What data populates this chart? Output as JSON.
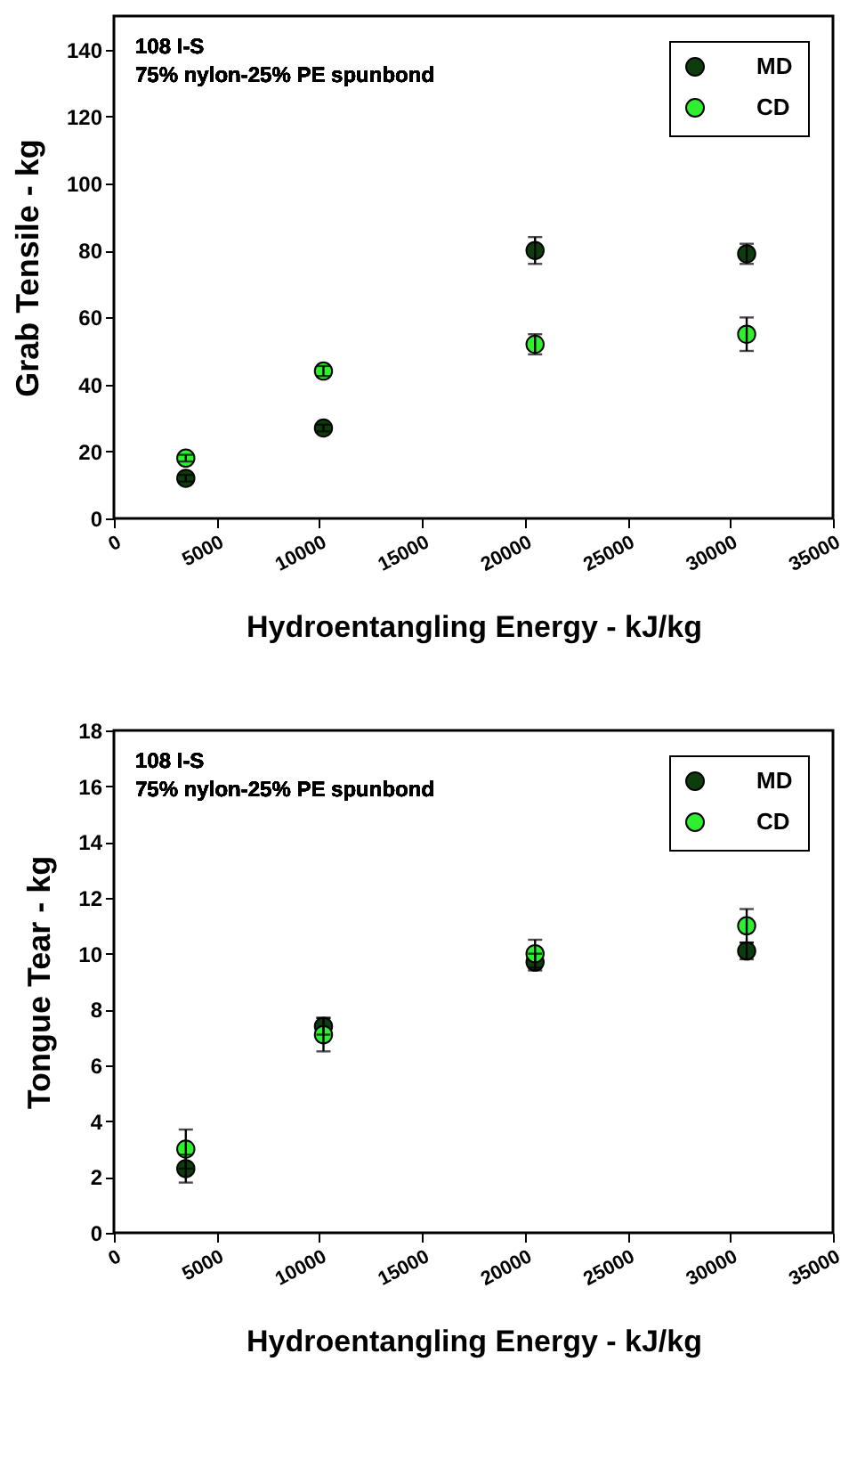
{
  "chart_data": [
    {
      "type": "scatter",
      "annotations": [
        "108 I-S",
        "75% nylon-25% PE spunbond"
      ],
      "xlabel": "Hydroentangling Energy - kJ/kg",
      "ylabel": "Grab Tensile - kg",
      "x": [
        3500,
        10200,
        20500,
        30800
      ],
      "xlim": [
        0,
        35000
      ],
      "xticks": [
        0,
        5000,
        10000,
        15000,
        20000,
        25000,
        30000,
        35000
      ],
      "ylim": [
        0,
        150
      ],
      "yticks": [
        0,
        20,
        40,
        60,
        80,
        100,
        120,
        140
      ],
      "grid": false,
      "legend": "top right",
      "marker": "circle",
      "series": [
        {
          "name": "MD",
          "color": "#0d3d0d",
          "values": [
            12,
            27,
            80,
            79
          ],
          "errors": [
            1,
            1,
            4,
            3
          ]
        },
        {
          "name": "CD",
          "color": "#2ef02e",
          "values": [
            18,
            44,
            52,
            55
          ],
          "errors": [
            1,
            1.5,
            3,
            5
          ]
        }
      ]
    },
    {
      "type": "scatter",
      "annotations": [
        "108 I-S",
        "75% nylon-25% PE spunbond"
      ],
      "xlabel": "Hydroentangling Energy - kJ/kg",
      "ylabel": "Tongue Tear - kg",
      "x": [
        3500,
        10200,
        20500,
        30800
      ],
      "xlim": [
        0,
        35000
      ],
      "xticks": [
        0,
        5000,
        10000,
        15000,
        20000,
        25000,
        30000,
        35000
      ],
      "ylim": [
        0,
        18
      ],
      "yticks": [
        0,
        2,
        4,
        6,
        8,
        10,
        12,
        14,
        16,
        18
      ],
      "grid": false,
      "legend": "top right",
      "marker": "circle",
      "series": [
        {
          "name": "MD",
          "color": "#0d3d0d",
          "values": [
            2.3,
            7.4,
            9.7,
            10.1
          ],
          "errors": [
            0.5,
            0.3,
            0.3,
            0.3
          ]
        },
        {
          "name": "CD",
          "color": "#2ef02e",
          "values": [
            3.0,
            7.1,
            10.0,
            11.0
          ],
          "errors": [
            0.7,
            0.6,
            0.5,
            0.6
          ]
        }
      ]
    }
  ]
}
